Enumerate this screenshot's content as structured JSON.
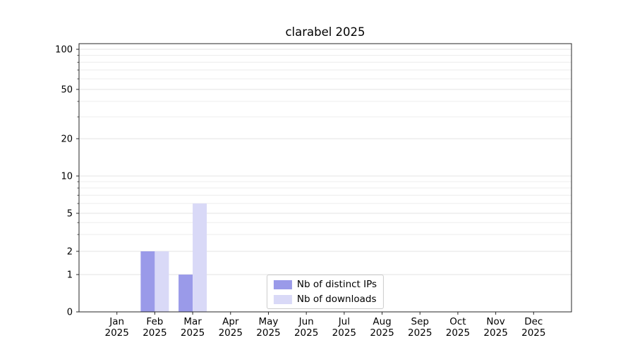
{
  "chart_data": {
    "type": "bar",
    "title": "clarabel 2025",
    "categories": [
      "Jan",
      "Feb",
      "Mar",
      "Apr",
      "May",
      "Jun",
      "Jul",
      "Aug",
      "Sep",
      "Oct",
      "Nov",
      "Dec"
    ],
    "year": "2025",
    "series": [
      {
        "name": "Nb of distinct IPs",
        "color": "#9a9ae9",
        "values": [
          0,
          2,
          1,
          0,
          0,
          0,
          0,
          0,
          0,
          0,
          0,
          0
        ]
      },
      {
        "name": "Nb of downloads",
        "color": "#d9d9f7",
        "values": [
          0,
          2,
          6,
          0,
          0,
          0,
          0,
          0,
          0,
          0,
          0,
          0
        ]
      }
    ],
    "yticks": [
      0,
      1,
      2,
      5,
      10,
      20,
      50,
      100
    ],
    "minor_gridlines": [
      3,
      4,
      6,
      7,
      8,
      9,
      30,
      40,
      60,
      70,
      80,
      90
    ],
    "scale": "symlog",
    "ylim": [
      0,
      100
    ],
    "grid": "horizontal",
    "legend_position": "lower-center"
  }
}
